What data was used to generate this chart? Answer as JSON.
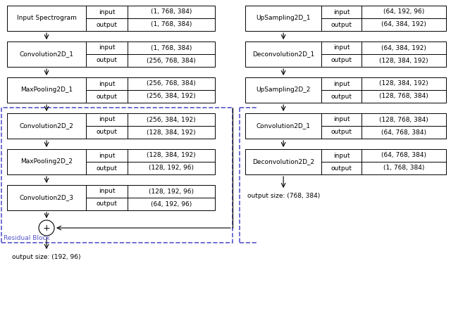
{
  "left_blocks": [
    {
      "name": "Input Spectrogram",
      "input": "(1, 768, 384)",
      "output": "(1, 768, 384)"
    },
    {
      "name": "Convolution2D_1",
      "input": "(1, 768, 384)",
      "output": "(256, 768, 384)"
    },
    {
      "name": "MaxPooling2D_1",
      "input": "(256, 768, 384)",
      "output": "(256, 384, 192)"
    },
    {
      "name": "Convolution2D_2",
      "input": "(256, 384, 192)",
      "output": "(128, 384, 192)"
    },
    {
      "name": "MaxPooling2D_2",
      "input": "(128, 384, 192)",
      "output": "(128, 192, 96)"
    },
    {
      "name": "Convolution2D_3",
      "input": "(128, 192, 96)",
      "output": "(64, 192, 96)"
    }
  ],
  "right_blocks": [
    {
      "name": "UpSampling2D_1",
      "input": "(64, 192, 96)",
      "output": "(64, 384, 192)"
    },
    {
      "name": "Deconvolution2D_1",
      "input": "(64, 384, 192)",
      "output": "(128, 384, 192)"
    },
    {
      "name": "UpSampling2D_2",
      "input": "(128, 384, 192)",
      "output": "(128, 768, 384)"
    },
    {
      "name": "Convolution2D_1",
      "input": "(128, 768, 384)",
      "output": "(64, 768, 384)"
    },
    {
      "name": "Deconvolution2D_2",
      "input": "(64, 768, 384)",
      "output": "(1, 768, 384)"
    }
  ],
  "left_output": "output size: (192, 96)",
  "right_output": "output size: (768, 384)",
  "residual_label": "Residual Block",
  "bg_color": "#ffffff",
  "box_edge_color": "#000000",
  "dashed_color": "#5555cc",
  "arrow_color": "#000000",
  "text_color": "#000000",
  "font_size": 6.5
}
